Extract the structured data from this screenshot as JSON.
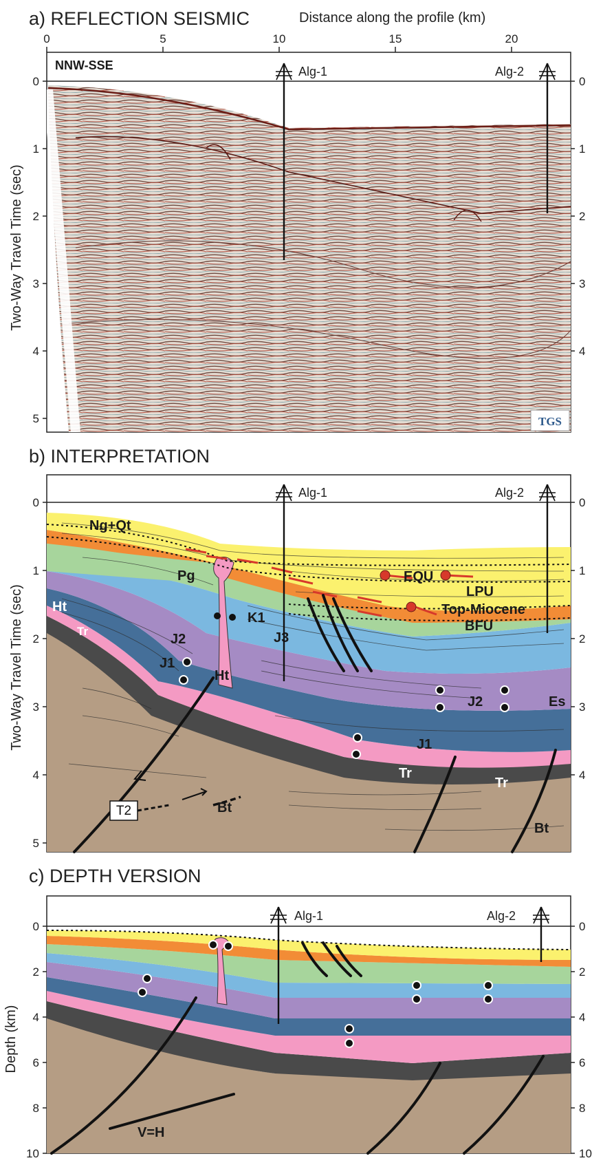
{
  "panel_a": {
    "title": "a) REFLECTION SEISMIC",
    "top_axis_title": "Distance along the profile (km)",
    "top_ticks": [
      "0",
      "5",
      "10",
      "15",
      "20"
    ],
    "y_title": "Two-Way Travel Time (sec)",
    "y_ticks": [
      "0",
      "1",
      "2",
      "3",
      "4",
      "5"
    ],
    "direction": "NNW-SSE",
    "logo": "TGS"
  },
  "panel_b": {
    "title": "b) INTERPRETATION",
    "y_title": "Two-Way Travel Time (sec)",
    "y_ticks": [
      "0",
      "1",
      "2",
      "3",
      "4",
      "5"
    ],
    "labels": {
      "ngqt": "Ng+Qt",
      "pg": "Pg",
      "k1": "K1",
      "j2": "J2",
      "j1": "J1",
      "ht": "Ht",
      "tr": "Tr",
      "j3": "J3",
      "equ": "EQU",
      "lpu": "LPU",
      "top_miocene": "Top-Miocene",
      "bfu": "BFU",
      "es": "Es",
      "j2b": "J2",
      "j1b": "J1",
      "ht2": "Ht",
      "tr2": "Tr",
      "tr3": "Tr",
      "bt": "Bt",
      "bt2": "Bt",
      "t2": "T2"
    }
  },
  "panel_c": {
    "title": "c) DEPTH VERSION",
    "y_title": "Depth (km)",
    "y_ticks": [
      "0",
      "2",
      "4",
      "6",
      "8",
      "10"
    ],
    "vh": "V=H"
  },
  "wells": {
    "alg1": "Alg-1",
    "alg2": "Alg-2"
  },
  "colors": {
    "ngqt": "#fbf16e",
    "pg": "#f28c36",
    "k1": "#a7d59c",
    "j3": "#7bb8e0",
    "j2": "#a58bc4",
    "j1": "#456f99",
    "ht": "#f49ac3",
    "tr": "#4a4a4a",
    "basement": "#b59d84",
    "marker": "#d7392b"
  }
}
